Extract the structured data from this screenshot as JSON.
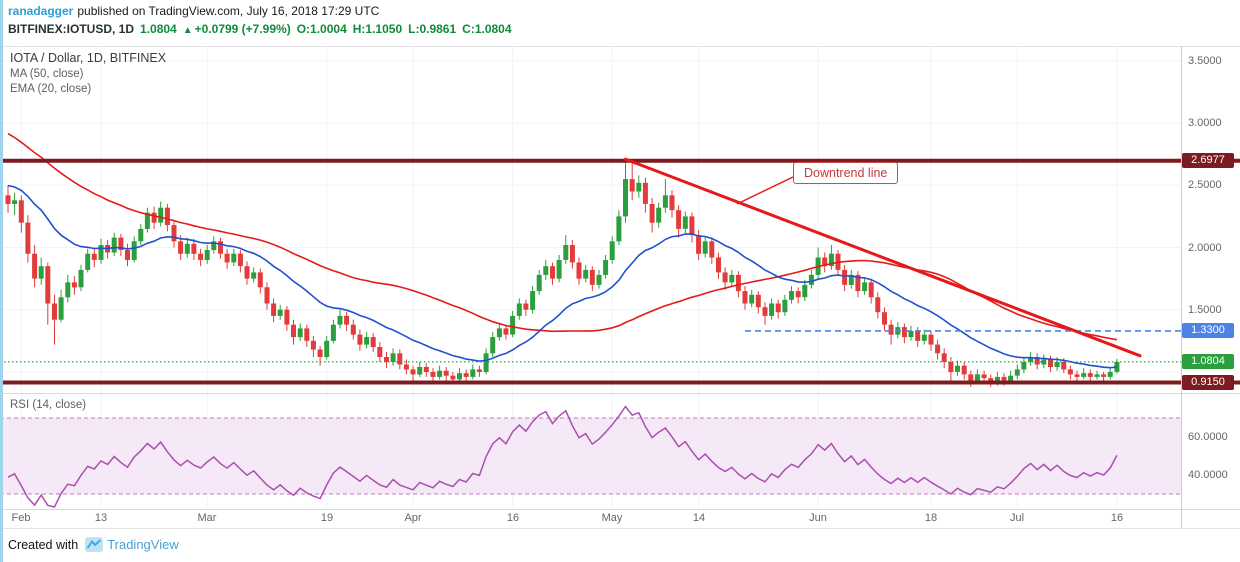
{
  "meta": {
    "publisher": "ranadagger",
    "published_text": "published on TradingView.com, July 16, 2018 17:29 UTC"
  },
  "symbol_bar": {
    "symbol": "BITFINEX:IOTUSD, 1D",
    "last": "1.0804",
    "arrow": "▲",
    "change": "+0.0799 (+7.99%)",
    "open": "O:1.0004",
    "high": "H:1.1050",
    "low": "L:0.9861",
    "close": "C:1.0804"
  },
  "legend": {
    "title": "IOTA / Dollar, 1D, BITFINEX",
    "ma": "MA (50, close)",
    "ema": "EMA (20, close)",
    "rsi": "RSI (14, close)"
  },
  "annotations": {
    "downtrend_label": "Downtrend line"
  },
  "footer": {
    "created_with": "Created with",
    "brand": "TradingView"
  },
  "colors": {
    "publisher_accent": "#2d9fd8",
    "up": "#2b9f3e",
    "down": "#e13b3b",
    "ma": "#e61919",
    "ema": "#2151cc",
    "maroon": "#7c1c20",
    "level_blue": "#4d82e6",
    "current_green": "#2b9f3e",
    "trend": "#e61919",
    "rsi": "#aa4fae",
    "rsi_dash": "#cf8fd3",
    "rsi_band": "#f6e9f7",
    "grid": "#f0f3f8",
    "axis_text": "#666666"
  },
  "chart_data": {
    "type": "candlestick",
    "title": "IOTA / Dollar, 1D, BITFINEX",
    "ylim": [
      0.86,
      3.62
    ],
    "price_axis_ticks": [
      {
        "label": "3.5000",
        "value": 3.5
      },
      {
        "label": "3.0000",
        "value": 3.0
      },
      {
        "label": "2.5000",
        "value": 2.5
      },
      {
        "label": "2.0000",
        "value": 2.0
      },
      {
        "label": "1.5000",
        "value": 1.5
      }
    ],
    "grid_extra_prices": [
      1.0
    ],
    "time_ticks": [
      {
        "label": "Feb",
        "i": 2
      },
      {
        "label": "13",
        "i": 14
      },
      {
        "label": "Mar",
        "i": 30
      },
      {
        "label": "19",
        "i": 48
      },
      {
        "label": "Apr",
        "i": 61
      },
      {
        "label": "16",
        "i": 76
      },
      {
        "label": "May",
        "i": 91
      },
      {
        "label": "14",
        "i": 104
      },
      {
        "label": "Jun",
        "i": 122
      },
      {
        "label": "18",
        "i": 139
      },
      {
        "label": "Jul",
        "i": 152
      },
      {
        "label": "16",
        "i": 167
      }
    ],
    "levels": [
      {
        "label": "2.6977",
        "value": 2.6977,
        "type": "thick",
        "color": "#7c1c20"
      },
      {
        "label": "1.3300",
        "value": 1.33,
        "type": "dashed",
        "color": "#4d82e6",
        "start_index": 111
      },
      {
        "label": "1.0804",
        "value": 1.0804,
        "type": "dotted",
        "color": "#2b9f3e"
      },
      {
        "label": "0.9150",
        "value": 0.915,
        "type": "thick",
        "color": "#7c1c20"
      }
    ],
    "trendline": {
      "from_index": 93,
      "from_price": 2.71,
      "to_index": 170.5,
      "to_price": 1.13,
      "color": "#e61919",
      "connector": [
        737,
        204,
        793,
        177
      ]
    },
    "indicators": {
      "ma": {
        "length": 50,
        "color": "#e61919"
      },
      "ema": {
        "length": 20,
        "color": "#2151cc"
      },
      "rsi": {
        "length": 14,
        "color": "#aa4fae",
        "band": [
          30,
          70
        ]
      }
    },
    "rsi_ticks": [
      {
        "label": "60.0000",
        "value": 60
      },
      {
        "label": "40.0000",
        "value": 40
      }
    ],
    "prehistory_closes": [
      3.9,
      3.95,
      4.1,
      4.0,
      3.85,
      3.7,
      3.8,
      3.65,
      3.55,
      3.6,
      3.45,
      3.5,
      3.35,
      3.4,
      3.25,
      3.3,
      3.15,
      3.05,
      3.1,
      2.95,
      3.0,
      2.9,
      2.85,
      2.95,
      2.8,
      2.7,
      2.75,
      2.6,
      2.65,
      2.55,
      2.6,
      2.5,
      2.45,
      2.55,
      2.4,
      2.45,
      2.35,
      2.4,
      2.3,
      2.35,
      2.45,
      2.55,
      2.65,
      2.6,
      2.5,
      2.4,
      2.45,
      2.35,
      2.3,
      2.38
    ],
    "candles": [
      [
        2.42,
        2.5,
        2.28,
        2.35
      ],
      [
        2.35,
        2.44,
        2.26,
        2.38
      ],
      [
        2.38,
        2.42,
        2.12,
        2.2
      ],
      [
        2.2,
        2.26,
        1.88,
        1.95
      ],
      [
        1.95,
        2.02,
        1.68,
        1.75
      ],
      [
        1.75,
        1.92,
        1.7,
        1.85
      ],
      [
        1.85,
        1.88,
        1.38,
        1.55
      ],
      [
        1.55,
        1.62,
        1.22,
        1.42
      ],
      [
        1.42,
        1.66,
        1.4,
        1.6
      ],
      [
        1.6,
        1.78,
        1.56,
        1.72
      ],
      [
        1.72,
        1.77,
        1.62,
        1.68
      ],
      [
        1.68,
        1.86,
        1.65,
        1.82
      ],
      [
        1.82,
        1.99,
        1.8,
        1.95
      ],
      [
        1.95,
        1.99,
        1.84,
        1.9
      ],
      [
        1.9,
        2.07,
        1.87,
        2.02
      ],
      [
        2.02,
        2.06,
        1.91,
        1.96
      ],
      [
        1.96,
        2.12,
        1.93,
        2.08
      ],
      [
        2.08,
        2.11,
        1.93,
        1.98
      ],
      [
        1.98,
        2.03,
        1.85,
        1.9
      ],
      [
        1.9,
        2.09,
        1.88,
        2.05
      ],
      [
        2.05,
        2.19,
        2.02,
        2.15
      ],
      [
        2.15,
        2.32,
        2.12,
        2.28
      ],
      [
        2.28,
        2.33,
        2.15,
        2.2
      ],
      [
        2.2,
        2.37,
        2.17,
        2.32
      ],
      [
        2.32,
        2.35,
        2.13,
        2.18
      ],
      [
        2.18,
        2.22,
        2.0,
        2.05
      ],
      [
        2.05,
        2.1,
        1.9,
        1.95
      ],
      [
        1.95,
        2.08,
        1.92,
        2.03
      ],
      [
        2.03,
        2.07,
        1.9,
        1.95
      ],
      [
        1.95,
        1.99,
        1.85,
        1.9
      ],
      [
        1.9,
        2.02,
        1.87,
        1.98
      ],
      [
        1.98,
        2.09,
        1.95,
        2.05
      ],
      [
        2.05,
        2.08,
        1.91,
        1.95
      ],
      [
        1.95,
        1.99,
        1.83,
        1.88
      ],
      [
        1.88,
        1.99,
        1.85,
        1.95
      ],
      [
        1.95,
        1.98,
        1.8,
        1.85
      ],
      [
        1.85,
        1.89,
        1.7,
        1.75
      ],
      [
        1.75,
        1.84,
        1.72,
        1.8
      ],
      [
        1.8,
        1.83,
        1.63,
        1.68
      ],
      [
        1.68,
        1.72,
        1.5,
        1.55
      ],
      [
        1.55,
        1.59,
        1.4,
        1.45
      ],
      [
        1.45,
        1.54,
        1.42,
        1.5
      ],
      [
        1.5,
        1.53,
        1.33,
        1.38
      ],
      [
        1.38,
        1.42,
        1.22,
        1.28
      ],
      [
        1.28,
        1.39,
        1.25,
        1.35
      ],
      [
        1.35,
        1.38,
        1.2,
        1.25
      ],
      [
        1.25,
        1.29,
        1.12,
        1.18
      ],
      [
        1.18,
        1.21,
        1.05,
        1.12
      ],
      [
        1.12,
        1.29,
        1.1,
        1.25
      ],
      [
        1.25,
        1.42,
        1.23,
        1.38
      ],
      [
        1.38,
        1.5,
        1.35,
        1.45
      ],
      [
        1.45,
        1.48,
        1.33,
        1.38
      ],
      [
        1.38,
        1.42,
        1.26,
        1.3
      ],
      [
        1.3,
        1.34,
        1.17,
        1.22
      ],
      [
        1.22,
        1.32,
        1.19,
        1.28
      ],
      [
        1.28,
        1.31,
        1.16,
        1.2
      ],
      [
        1.2,
        1.24,
        1.08,
        1.12
      ],
      [
        1.12,
        1.16,
        1.03,
        1.08
      ],
      [
        1.08,
        1.19,
        1.05,
        1.15
      ],
      [
        1.15,
        1.18,
        1.02,
        1.06
      ],
      [
        1.06,
        1.1,
        0.98,
        1.02
      ],
      [
        1.02,
        1.05,
        0.93,
        0.98
      ],
      [
        0.98,
        1.08,
        0.96,
        1.04
      ],
      [
        1.04,
        1.07,
        0.96,
        1.0
      ],
      [
        1.0,
        1.03,
        0.92,
        0.96
      ],
      [
        0.96,
        1.05,
        0.94,
        1.01
      ],
      [
        1.01,
        1.04,
        0.93,
        0.97
      ],
      [
        0.97,
        1.0,
        0.9,
        0.94
      ],
      [
        0.94,
        1.03,
        0.92,
        0.99
      ],
      [
        0.99,
        1.02,
        0.92,
        0.96
      ],
      [
        0.96,
        1.06,
        0.94,
        1.02
      ],
      [
        1.02,
        1.05,
        0.96,
        1.0
      ],
      [
        1.0,
        1.19,
        0.98,
        1.15
      ],
      [
        1.15,
        1.32,
        1.12,
        1.28
      ],
      [
        1.28,
        1.39,
        1.25,
        1.35
      ],
      [
        1.35,
        1.38,
        1.26,
        1.3
      ],
      [
        1.3,
        1.49,
        1.28,
        1.45
      ],
      [
        1.45,
        1.59,
        1.42,
        1.55
      ],
      [
        1.55,
        1.58,
        1.45,
        1.5
      ],
      [
        1.5,
        1.69,
        1.47,
        1.65
      ],
      [
        1.65,
        1.82,
        1.62,
        1.78
      ],
      [
        1.78,
        1.9,
        1.74,
        1.85
      ],
      [
        1.85,
        1.88,
        1.7,
        1.75
      ],
      [
        1.75,
        1.94,
        1.72,
        1.9
      ],
      [
        1.9,
        2.1,
        1.87,
        2.02
      ],
      [
        2.02,
        2.06,
        1.83,
        1.88
      ],
      [
        1.88,
        1.92,
        1.7,
        1.75
      ],
      [
        1.75,
        1.86,
        1.72,
        1.82
      ],
      [
        1.82,
        1.85,
        1.65,
        1.7
      ],
      [
        1.7,
        1.82,
        1.67,
        1.78
      ],
      [
        1.78,
        1.94,
        1.75,
        1.9
      ],
      [
        1.9,
        2.09,
        1.87,
        2.05
      ],
      [
        2.05,
        2.3,
        2.02,
        2.25
      ],
      [
        2.25,
        2.7,
        2.2,
        2.55
      ],
      [
        2.55,
        2.68,
        2.38,
        2.45
      ],
      [
        2.45,
        2.58,
        2.4,
        2.52
      ],
      [
        2.52,
        2.56,
        2.28,
        2.35
      ],
      [
        2.35,
        2.4,
        2.12,
        2.2
      ],
      [
        2.2,
        2.36,
        2.16,
        2.32
      ],
      [
        2.32,
        2.55,
        2.28,
        2.42
      ],
      [
        2.42,
        2.46,
        2.24,
        2.3
      ],
      [
        2.3,
        2.34,
        2.08,
        2.15
      ],
      [
        2.15,
        2.29,
        2.11,
        2.25
      ],
      [
        2.25,
        2.28,
        2.04,
        2.1
      ],
      [
        2.1,
        2.14,
        1.9,
        1.95
      ],
      [
        1.95,
        2.09,
        1.92,
        2.05
      ],
      [
        2.05,
        2.08,
        1.87,
        1.92
      ],
      [
        1.92,
        1.96,
        1.75,
        1.8
      ],
      [
        1.8,
        1.84,
        1.66,
        1.72
      ],
      [
        1.72,
        1.82,
        1.69,
        1.78
      ],
      [
        1.78,
        1.81,
        1.6,
        1.65
      ],
      [
        1.65,
        1.69,
        1.5,
        1.55
      ],
      [
        1.55,
        1.66,
        1.52,
        1.62
      ],
      [
        1.62,
        1.65,
        1.47,
        1.52
      ],
      [
        1.52,
        1.56,
        1.38,
        1.45
      ],
      [
        1.45,
        1.59,
        1.42,
        1.55
      ],
      [
        1.55,
        1.58,
        1.43,
        1.48
      ],
      [
        1.48,
        1.62,
        1.45,
        1.58
      ],
      [
        1.58,
        1.69,
        1.55,
        1.65
      ],
      [
        1.65,
        1.68,
        1.55,
        1.6
      ],
      [
        1.6,
        1.74,
        1.57,
        1.7
      ],
      [
        1.7,
        1.82,
        1.67,
        1.78
      ],
      [
        1.78,
        2.0,
        1.75,
        1.92
      ],
      [
        1.92,
        1.96,
        1.8,
        1.85
      ],
      [
        1.85,
        2.02,
        1.82,
        1.95
      ],
      [
        1.95,
        1.98,
        1.77,
        1.82
      ],
      [
        1.82,
        1.86,
        1.65,
        1.7
      ],
      [
        1.7,
        1.82,
        1.67,
        1.78
      ],
      [
        1.78,
        1.81,
        1.6,
        1.65
      ],
      [
        1.65,
        1.76,
        1.62,
        1.72
      ],
      [
        1.72,
        1.75,
        1.55,
        1.6
      ],
      [
        1.6,
        1.64,
        1.43,
        1.48
      ],
      [
        1.48,
        1.52,
        1.33,
        1.38
      ],
      [
        1.38,
        1.42,
        1.22,
        1.3
      ],
      [
        1.3,
        1.4,
        1.27,
        1.36
      ],
      [
        1.36,
        1.39,
        1.23,
        1.28
      ],
      [
        1.28,
        1.37,
        1.25,
        1.33
      ],
      [
        1.33,
        1.36,
        1.2,
        1.25
      ],
      [
        1.25,
        1.34,
        1.22,
        1.3
      ],
      [
        1.3,
        1.33,
        1.17,
        1.22
      ],
      [
        1.22,
        1.26,
        1.1,
        1.15
      ],
      [
        1.15,
        1.19,
        1.03,
        1.08
      ],
      [
        1.08,
        1.12,
        0.92,
        1.0
      ],
      [
        1.0,
        1.09,
        0.97,
        1.05
      ],
      [
        1.05,
        1.08,
        0.94,
        0.98
      ],
      [
        0.98,
        1.01,
        0.88,
        0.93
      ],
      [
        0.93,
        1.02,
        0.9,
        0.98
      ],
      [
        0.98,
        1.01,
        0.91,
        0.95
      ],
      [
        0.95,
        0.98,
        0.88,
        0.92
      ],
      [
        0.92,
        1.0,
        0.89,
        0.96
      ],
      [
        0.96,
        0.99,
        0.89,
        0.93
      ],
      [
        0.93,
        1.01,
        0.9,
        0.97
      ],
      [
        0.97,
        1.06,
        0.94,
        1.02
      ],
      [
        1.02,
        1.12,
        0.99,
        1.08
      ],
      [
        1.08,
        1.16,
        1.05,
        1.12
      ],
      [
        1.12,
        1.15,
        1.02,
        1.06
      ],
      [
        1.06,
        1.14,
        1.03,
        1.1
      ],
      [
        1.1,
        1.13,
        1.0,
        1.04
      ],
      [
        1.04,
        1.12,
        1.01,
        1.08
      ],
      [
        1.08,
        1.11,
        0.99,
        1.02
      ],
      [
        1.02,
        1.05,
        0.94,
        0.98
      ],
      [
        0.98,
        1.01,
        0.93,
        0.96
      ],
      [
        0.96,
        1.03,
        0.94,
        0.99
      ],
      [
        0.99,
        1.02,
        0.93,
        0.96
      ],
      [
        0.96,
        1.01,
        0.94,
        0.98
      ],
      [
        0.98,
        1.0,
        0.93,
        0.96
      ],
      [
        0.96,
        1.03,
        0.94,
        1.0
      ],
      [
        1.0004,
        1.105,
        0.9861,
        1.0804
      ]
    ]
  }
}
